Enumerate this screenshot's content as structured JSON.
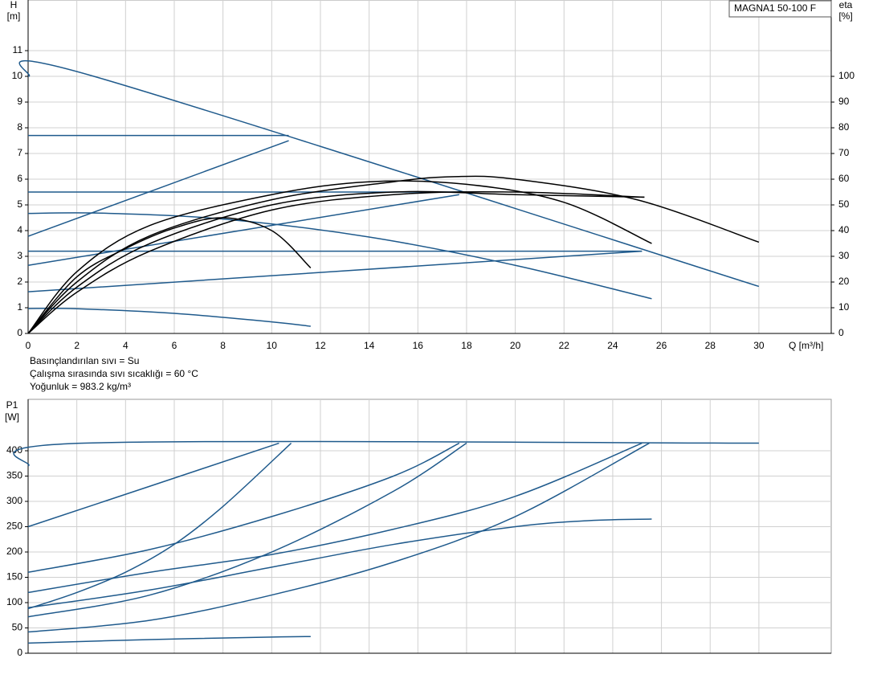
{
  "chart_data": [
    {
      "type": "line",
      "title": "MAGNA1 50-100 F",
      "ylabel": "H",
      "yunit": "[m]",
      "y2label": "eta",
      "y2unit": "[%]",
      "xlabel": "Q [m³/h]",
      "notes": [
        "Basınçlandırılan sıvı = Su",
        "Çalışma sırasında sıvı sıcaklığı = 60 °C",
        "Yoğunluk = 983.2 kg/m³"
      ],
      "xlim": [
        0,
        32.97
      ],
      "xticks": [
        0,
        2,
        4,
        6,
        8,
        10,
        12,
        14,
        16,
        18,
        20,
        22,
        24,
        26,
        28,
        30
      ],
      "ylim": [
        0,
        12.97
      ],
      "yticks": [
        0,
        1,
        2,
        3,
        4,
        5,
        6,
        7,
        8,
        9,
        10,
        11
      ],
      "y2lim": [
        0,
        129.7
      ],
      "y2ticks": [
        0,
        10,
        20,
        30,
        40,
        50,
        60,
        70,
        80,
        90,
        100
      ],
      "grid": true,
      "series": [
        {
          "color": "#1f5a8c",
          "x": [
            0,
            2.7,
            30
          ],
          "values": [
            10,
            10,
            1.83
          ]
        },
        {
          "color": "#1f5a8c",
          "x": [
            0,
            10.7
          ],
          "values": [
            7.7,
            7.7
          ]
        },
        {
          "color": "#1f5a8c",
          "x": [
            0,
            18
          ],
          "values": [
            5.5,
            5.5
          ]
        },
        {
          "color": "#1f5a8c",
          "x": [
            0,
            25.2
          ],
          "values": [
            3.2,
            3.2
          ]
        },
        {
          "color": "#1f5a8c",
          "x": [
            0,
            10.7
          ],
          "values": [
            3.78,
            7.5
          ]
        },
        {
          "color": "#1f5a8c",
          "x": [
            0,
            17.7
          ],
          "values": [
            2.65,
            5.4
          ]
        },
        {
          "color": "#1f5a8c",
          "x": [
            0,
            25.2
          ],
          "values": [
            1.62,
            3.2
          ]
        },
        {
          "color": "#1f5a8c",
          "x": [
            0,
            3,
            8,
            14,
            20,
            25.6
          ],
          "values": [
            4.67,
            4.68,
            4.45,
            3.75,
            2.65,
            1.35
          ]
        },
        {
          "color": "#1f5a8c",
          "x": [
            0,
            2,
            6,
            10,
            11.6
          ],
          "values": [
            0.97,
            0.96,
            0.78,
            0.45,
            0.28
          ]
        },
        {
          "color": "#000000",
          "axis": "y2",
          "x": [
            0,
            2,
            5,
            10,
            15,
            17.5,
            20,
            25,
            30
          ],
          "values": [
            0,
            20,
            38,
            52,
            59,
            61,
            60,
            52,
            35.5
          ]
        },
        {
          "color": "#000000",
          "axis": "y2",
          "x": [
            0,
            2,
            5,
            10,
            14,
            18,
            22,
            25.6
          ],
          "values": [
            0,
            24,
            42,
            54,
            59,
            58,
            51,
            35
          ]
        },
        {
          "color": "#000000",
          "axis": "y2",
          "x": [
            0,
            2,
            5,
            10,
            15,
            20,
            25.3
          ],
          "values": [
            0,
            18,
            35,
            50,
            55,
            54,
            53
          ]
        },
        {
          "color": "#000000",
          "axis": "y2",
          "x": [
            0,
            2,
            4,
            6,
            8,
            10,
            11.6
          ],
          "values": [
            0,
            22,
            33,
            41,
            45,
            40,
            25.5
          ]
        },
        {
          "color": "#000000",
          "axis": "y2",
          "x": [
            0,
            2,
            5,
            10,
            15,
            20,
            25.3
          ],
          "values": [
            0,
            16,
            32,
            48,
            54,
            55,
            53
          ]
        }
      ]
    },
    {
      "type": "line",
      "ylabel": "P1",
      "yunit": "[W]",
      "xlim": [
        0,
        32.97
      ],
      "ylim": [
        0,
        501.6
      ],
      "yticks": [
        0,
        50,
        100,
        150,
        200,
        250,
        300,
        350,
        400
      ],
      "grid": true,
      "series": [
        {
          "color": "#1f5a8c",
          "x": [
            0,
            2.3,
            30
          ],
          "values": [
            370,
            415,
            415
          ]
        },
        {
          "color": "#1f5a8c",
          "x": [
            0,
            5,
            10.3
          ],
          "values": [
            250,
            330,
            415
          ]
        },
        {
          "color": "#1f5a8c",
          "x": [
            0,
            2,
            4,
            6,
            8,
            10.8
          ],
          "values": [
            88,
            120,
            160,
            215,
            290,
            415
          ]
        },
        {
          "color": "#1f5a8c",
          "x": [
            0,
            5,
            10,
            15,
            17.7
          ],
          "values": [
            160,
            205,
            270,
            350,
            415
          ]
        },
        {
          "color": "#1f5a8c",
          "x": [
            0,
            5,
            10,
            15,
            18
          ],
          "values": [
            72,
            115,
            200,
            320,
            415
          ]
        },
        {
          "color": "#1f5a8c",
          "x": [
            0,
            5,
            10,
            15,
            20,
            25.2
          ],
          "values": [
            120,
            160,
            195,
            245,
            310,
            415
          ]
        },
        {
          "color": "#1f5a8c",
          "x": [
            0,
            5,
            10,
            15,
            20,
            25.5
          ],
          "values": [
            42,
            65,
            115,
            180,
            270,
            415
          ]
        },
        {
          "color": "#1f5a8c",
          "x": [
            0,
            5,
            10,
            15,
            20,
            23,
            25.6
          ],
          "values": [
            90,
            125,
            170,
            215,
            250,
            262,
            265
          ]
        },
        {
          "color": "#1f5a8c",
          "x": [
            0,
            5,
            10,
            11.6
          ],
          "values": [
            20,
            27,
            32,
            33
          ]
        }
      ]
    }
  ]
}
